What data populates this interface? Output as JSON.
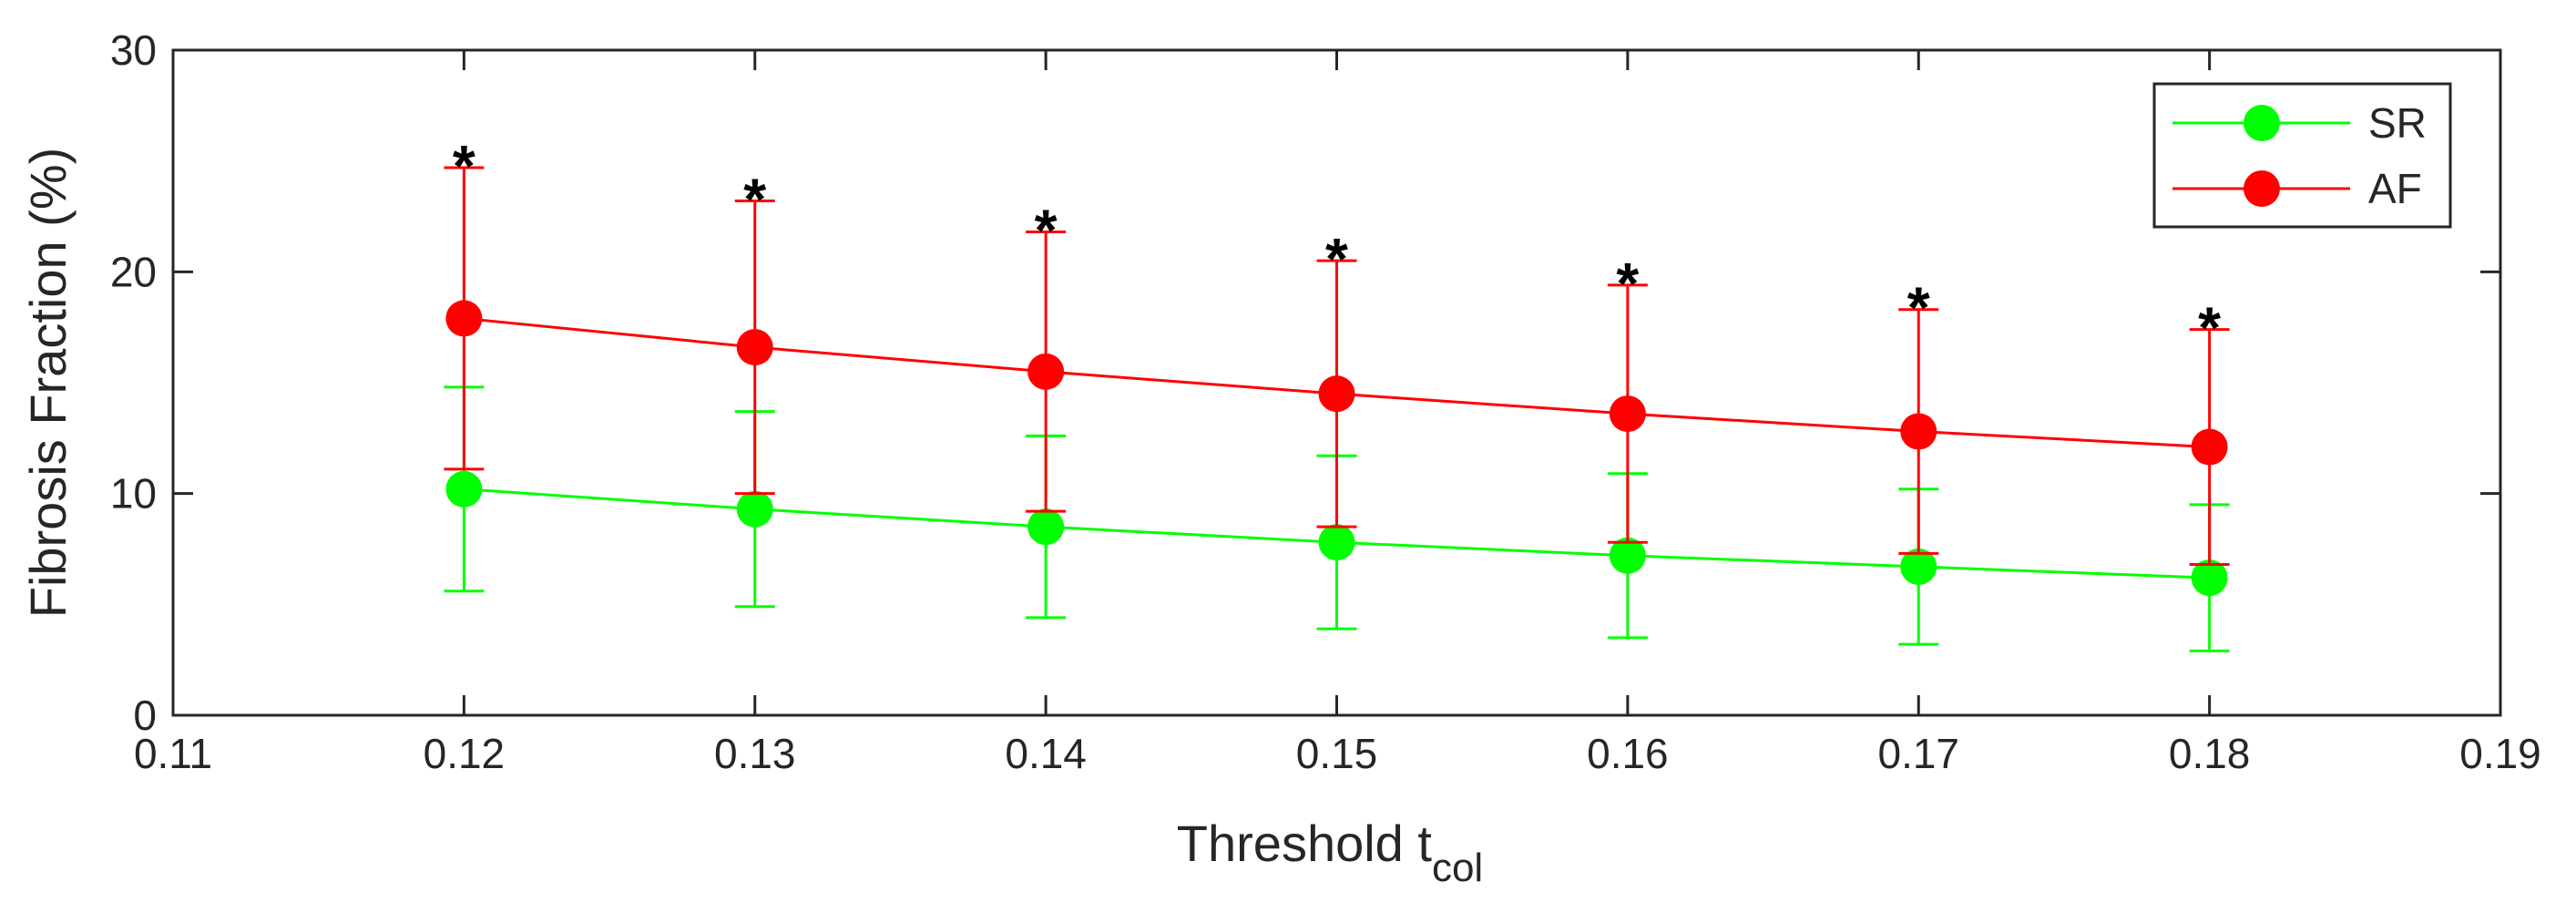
{
  "chart_data": {
    "type": "line",
    "title": "",
    "xlabel": "Threshold t",
    "xlabel_subscript": "col",
    "ylabel": "Fibrosis Fraction (%)",
    "xlim": [
      0.11,
      0.19
    ],
    "ylim": [
      0,
      30
    ],
    "x_ticks": [
      "0.11",
      "0.12",
      "0.13",
      "0.14",
      "0.15",
      "0.16",
      "0.17",
      "0.18",
      "0.19"
    ],
    "y_ticks": [
      "0",
      "10",
      "20",
      "30"
    ],
    "x": [
      0.12,
      0.13,
      0.14,
      0.15,
      0.16,
      0.17,
      0.18
    ],
    "grid": false,
    "legend_position": "top-right",
    "series": [
      {
        "name": "SR",
        "color": "#00ff00",
        "values": [
          10.2,
          9.3,
          8.5,
          7.8,
          7.2,
          6.7,
          6.2
        ],
        "error": [
          4.6,
          4.4,
          4.1,
          3.9,
          3.7,
          3.5,
          3.3
        ]
      },
      {
        "name": "AF",
        "color": "#ff0000",
        "values": [
          17.9,
          16.6,
          15.5,
          14.5,
          13.6,
          12.8,
          12.1
        ],
        "error": [
          6.8,
          6.6,
          6.3,
          6.0,
          5.8,
          5.5,
          5.3
        ]
      }
    ],
    "annotations": {
      "marker": "*",
      "x": [
        0.12,
        0.13,
        0.14,
        0.15,
        0.16,
        0.17,
        0.18
      ]
    }
  }
}
